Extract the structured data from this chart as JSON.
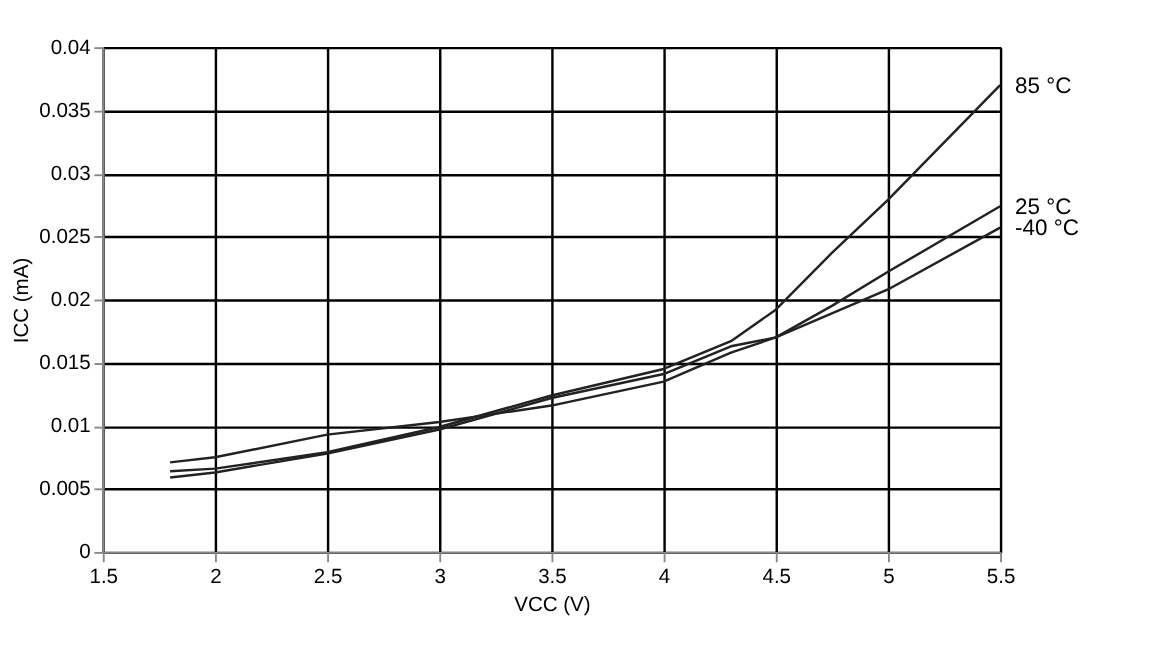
{
  "chart_data": {
    "type": "line",
    "xlabel": "VCC (V)",
    "ylabel": "ICC (mA)",
    "x": [
      1.8,
      2,
      2.5,
      3,
      3.5,
      4,
      4.3,
      4.5,
      4.75,
      5,
      5.5
    ],
    "series": [
      {
        "name": "85 °C",
        "color": "#222222",
        "values": [
          0.0064,
          0.0066,
          0.0079,
          0.0099,
          0.0124,
          0.0145,
          0.0167,
          0.0192,
          0.0237,
          0.0279,
          0.037
        ]
      },
      {
        "name": "25 °C",
        "color": "#222222",
        "values": [
          0.0059,
          0.0063,
          0.0078,
          0.0097,
          0.0122,
          0.0141,
          0.0163,
          0.017,
          0.0195,
          0.0222,
          0.0274
        ]
      },
      {
        "name": "-40 °C",
        "color": "#222222",
        "values": [
          0.0071,
          0.0075,
          0.0093,
          0.0103,
          0.0116,
          0.0135,
          0.0158,
          0.017,
          0.0189,
          0.0208,
          0.0257
        ]
      }
    ],
    "xlim": [
      1.5,
      5.5
    ],
    "xticks": [
      1.5,
      2,
      2.5,
      3,
      3.5,
      4,
      4.5,
      5,
      5.5
    ],
    "ylim": [
      0,
      0.04
    ],
    "yticks": [
      0,
      0.005,
      0.01,
      0.015,
      0.02,
      0.025,
      0.03,
      0.035,
      0.04
    ],
    "grid": true,
    "legend": false,
    "marker": "none",
    "line_style": "solid"
  }
}
